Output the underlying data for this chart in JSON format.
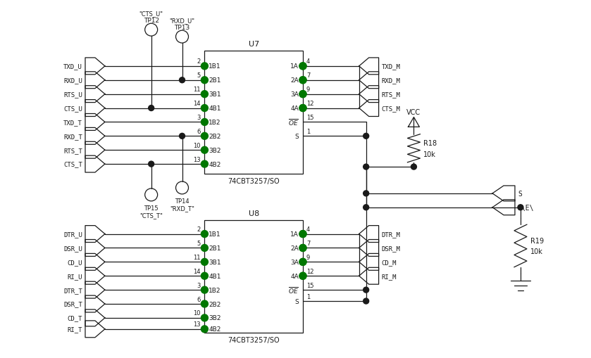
{
  "bg_color": "#ffffff",
  "line_color": "#1a1a1a",
  "green_dot_color": "#007700",
  "fig_width": 8.39,
  "fig_height": 5.1,
  "dpi": 100,
  "u7_left_top_labels": [
    "1B1",
    "2B1",
    "3B1",
    "4B1"
  ],
  "u7_left_top_pins": [
    "2",
    "5",
    "11",
    "14"
  ],
  "u7_left_bot_labels": [
    "1B2",
    "2B2",
    "3B2",
    "4B2"
  ],
  "u7_left_bot_pins": [
    "3",
    "6",
    "10",
    "13"
  ],
  "u7_right_top_labels": [
    "1A",
    "2A",
    "3A",
    "4A"
  ],
  "u7_right_top_pins": [
    "4",
    "7",
    "9",
    "12"
  ],
  "u8_left_top_labels": [
    "1B1",
    "2B1",
    "3B1",
    "4B1"
  ],
  "u8_left_top_pins": [
    "2",
    "5",
    "11",
    "14"
  ],
  "u8_left_bot_labels": [
    "1B2",
    "2B2",
    "3B2",
    "4B2"
  ],
  "u8_left_bot_pins": [
    "3",
    "6",
    "10",
    "13"
  ],
  "u8_right_top_labels": [
    "1A",
    "2A",
    "3A",
    "4A"
  ],
  "u8_right_top_pins": [
    "4",
    "7",
    "9",
    "12"
  ],
  "left_sigs_u7_top": [
    "TXD_U",
    "RXD_U",
    "RTS_U",
    "CTS_U"
  ],
  "left_sigs_u7_bot": [
    "TXD_T",
    "RXD_T",
    "RTS_T",
    "CTS_T"
  ],
  "right_sigs_u7": [
    "TXD_M",
    "RXD_M",
    "RTS_M",
    "CTS_M"
  ],
  "left_sigs_u8_top": [
    "DTR_U",
    "DSR_U",
    "CD_U",
    "RI_U"
  ],
  "left_sigs_u8_bot": [
    "DTR_T",
    "DSR_T",
    "CD_T",
    "RI_T"
  ],
  "right_sigs_u8": [
    "DTR_M",
    "DSR_M",
    "CD_M",
    "RI_M"
  ]
}
